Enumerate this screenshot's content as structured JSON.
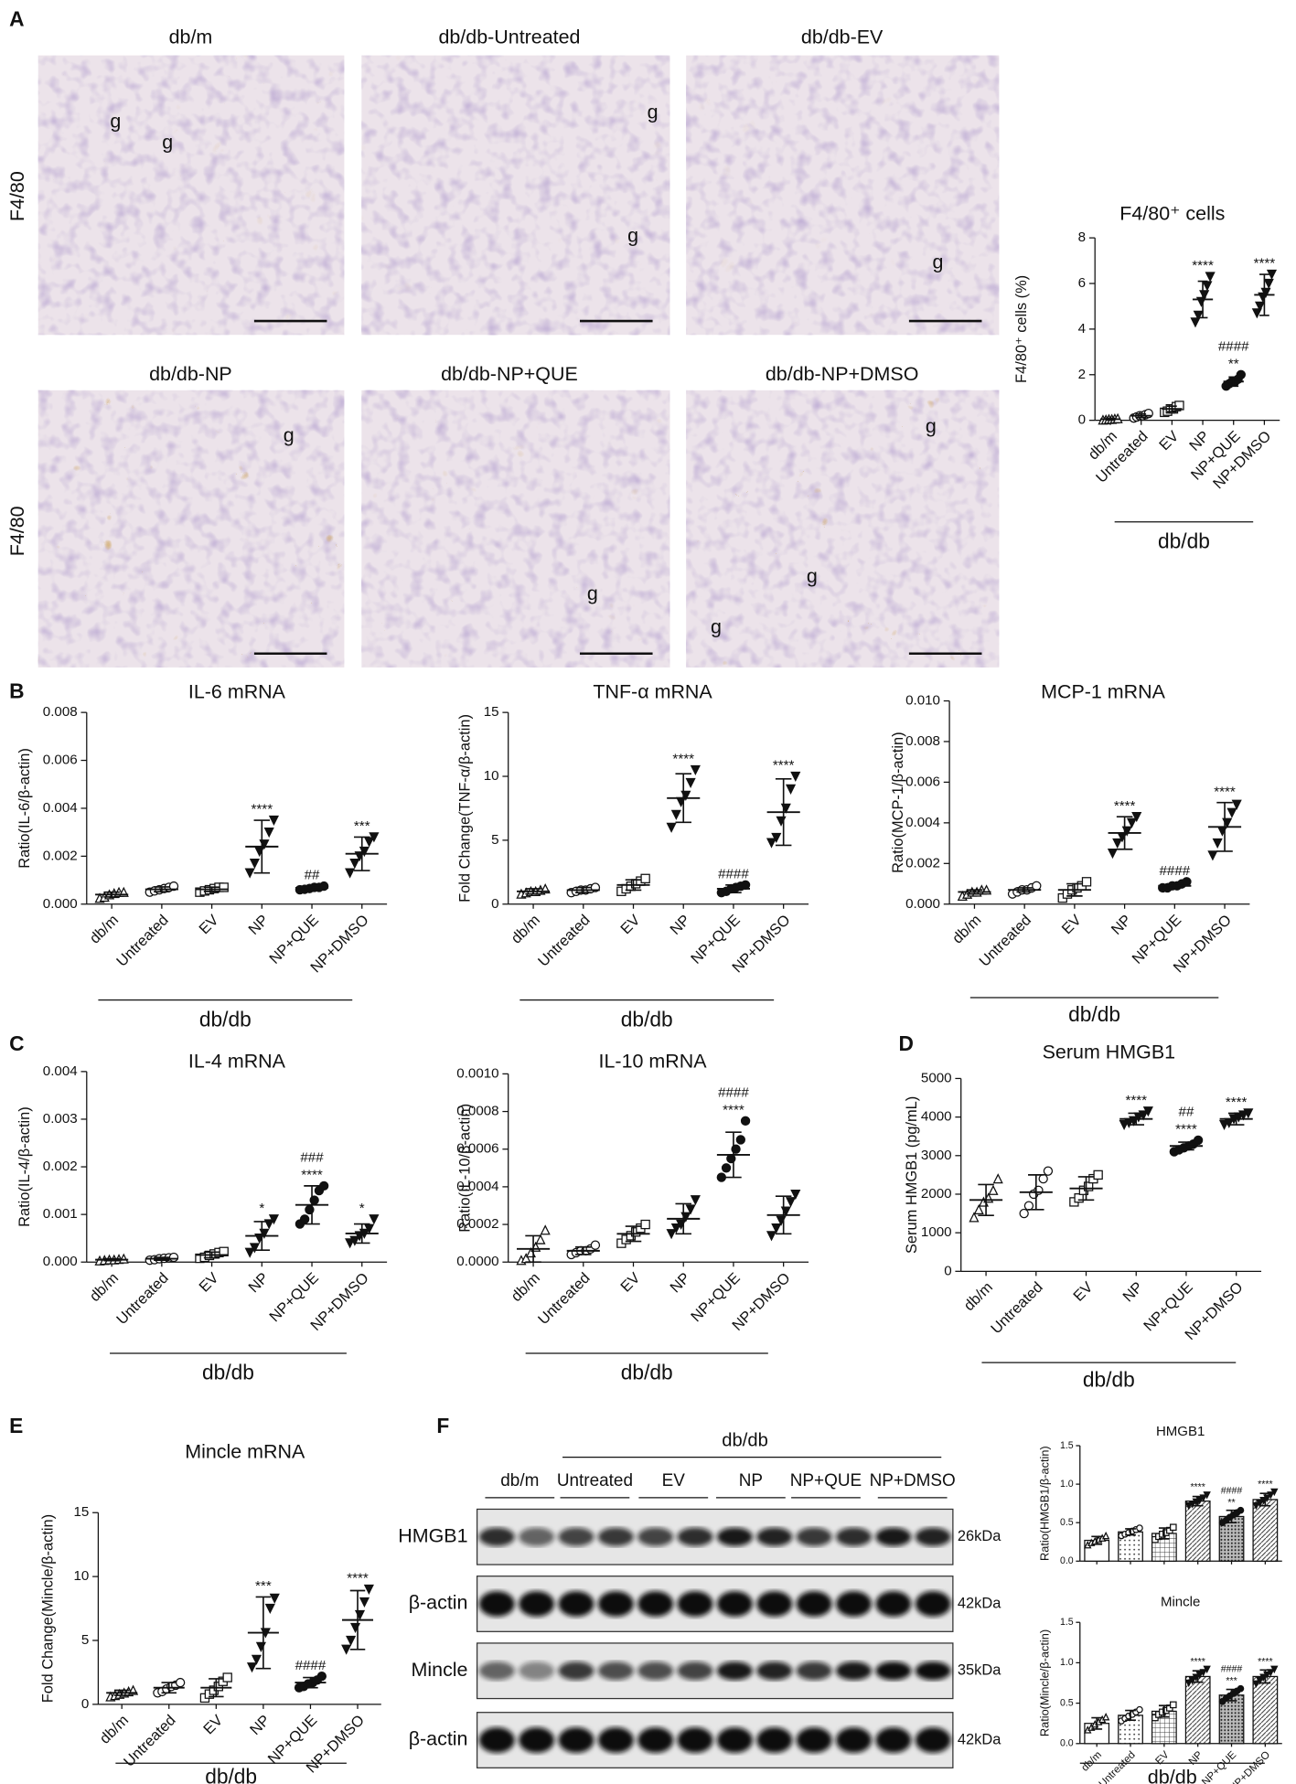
{
  "panels": [
    "A",
    "B",
    "C",
    "D",
    "E",
    "F"
  ],
  "micrographs": {
    "row_labels": [
      "F4/80",
      "F4/80"
    ],
    "images": [
      {
        "title": "db/m",
        "labels": [
          "g",
          "g"
        ]
      },
      {
        "title": "db/db-Untreated",
        "labels": [
          "g",
          "g"
        ]
      },
      {
        "title": "db/db-EV",
        "labels": [
          "g"
        ]
      },
      {
        "title": "db/db-NP",
        "labels": [
          "g"
        ]
      },
      {
        "title": "db/db-NP+QUE",
        "labels": [
          "g"
        ]
      },
      {
        "title": "db/db-NP+DMSO",
        "labels": [
          "g",
          "g",
          "g"
        ]
      }
    ]
  },
  "blot": {
    "group_label": "db/db",
    "lanes": [
      "db/m",
      "Untreated",
      "EV",
      "NP",
      "NP+QUE",
      "NP+DMSO"
    ],
    "rows": [
      {
        "name": "HMGB1",
        "size": "26kDa"
      },
      {
        "name": "β-actin",
        "size": "42kDa"
      },
      {
        "name": "Mincle",
        "size": "35kDa"
      },
      {
        "name": "β-actin",
        "size": "42kDa"
      }
    ]
  },
  "chart_data": [
    {
      "type": "dot-plot",
      "title": "F4/80⁺ cells",
      "ylabel": "F4/80⁺ cells (%)",
      "categories": [
        "db/m",
        "Untreated",
        "EV",
        "NP",
        "NP+QUE",
        "NP+DMSO"
      ],
      "values": [
        0.05,
        0.2,
        0.5,
        5.3,
        1.7,
        5.5
      ],
      "errors": [
        0.04,
        0.08,
        0.12,
        0.8,
        0.2,
        0.9
      ],
      "points": [
        [
          0.02,
          0.03,
          0.05,
          0.05,
          0.07,
          0.08
        ],
        [
          0.1,
          0.15,
          0.2,
          0.2,
          0.25,
          0.3
        ],
        [
          0.35,
          0.4,
          0.5,
          0.5,
          0.6,
          0.65
        ],
        [
          4.3,
          4.6,
          5.2,
          5.5,
          5.9,
          6.3
        ],
        [
          1.5,
          1.6,
          1.7,
          1.7,
          1.8,
          2.0
        ],
        [
          4.7,
          5.0,
          5.4,
          5.6,
          6.0,
          6.4
        ]
      ],
      "annotations": [
        [],
        [],
        [],
        [
          "****"
        ],
        [
          "####",
          "**"
        ],
        [
          "****"
        ]
      ],
      "ylim": [
        0,
        8
      ],
      "yticks": [
        0,
        2,
        4,
        6,
        8
      ],
      "group_label": "db/db",
      "markers": [
        "triangle-open",
        "circle-open",
        "square-open",
        "triangle-down",
        "circle",
        "triangle-down"
      ]
    },
    {
      "type": "dot-plot",
      "title": "IL-6 mRNA",
      "ylabel": "Ratio(IL-6/β-actin)",
      "categories": [
        "db/m",
        "Untreated",
        "EV",
        "NP",
        "NP+QUE",
        "NP+DMSO"
      ],
      "values": [
        0.0004,
        0.00062,
        0.00062,
        0.0024,
        0.00068,
        0.0021
      ],
      "errors": [
        0.0001,
        0.0001,
        9e-05,
        0.0011,
        8e-05,
        0.0007
      ],
      "points": [
        [
          0.00025,
          0.0003,
          0.0004,
          0.00045,
          0.0005,
          0.0005
        ],
        [
          0.0005,
          0.00055,
          0.0006,
          0.00065,
          0.0007,
          0.00075
        ],
        [
          0.0005,
          0.00055,
          0.0006,
          0.00065,
          0.0007,
          0.0007
        ],
        [
          0.0013,
          0.0017,
          0.0022,
          0.0025,
          0.003,
          0.0035
        ],
        [
          0.0006,
          0.00062,
          0.00065,
          0.0007,
          0.0007,
          0.00075
        ],
        [
          0.0013,
          0.0017,
          0.002,
          0.0022,
          0.0026,
          0.0028
        ]
      ],
      "annotations": [
        [],
        [],
        [],
        [
          "****"
        ],
        [
          "##"
        ],
        [
          "***"
        ]
      ],
      "ylim": [
        0,
        0.008
      ],
      "yticks": [
        {
          "value": 0,
          "label": "0.000"
        },
        0.002,
        0.004,
        0.006,
        0.008
      ],
      "group_label": "db/db",
      "markers": [
        "triangle-open",
        "circle-open",
        "square-open",
        "triangle-down",
        "circle",
        "triangle-down"
      ]
    },
    {
      "type": "dot-plot",
      "title": "TNF-α mRNA",
      "ylabel": "Fold Change(TNF-α/β-actin)",
      "categories": [
        "db/m",
        "Untreated",
        "EV",
        "NP",
        "NP+QUE",
        "NP+DMSO"
      ],
      "values": [
        1.0,
        1.1,
        1.5,
        8.3,
        1.2,
        7.2
      ],
      "errors": [
        0.2,
        0.2,
        0.4,
        1.9,
        0.3,
        2.6
      ],
      "points": [
        [
          0.8,
          0.9,
          1.0,
          1.0,
          1.1,
          1.2
        ],
        [
          0.9,
          1.0,
          1.1,
          1.1,
          1.2,
          1.3
        ],
        [
          1.0,
          1.2,
          1.4,
          1.6,
          1.8,
          2.0
        ],
        [
          6.0,
          7.0,
          8.0,
          8.5,
          9.5,
          10.5
        ],
        [
          0.9,
          1.0,
          1.2,
          1.3,
          1.4,
          1.5
        ],
        [
          4.8,
          5.2,
          6.5,
          7.5,
          9,
          10
        ]
      ],
      "annotations": [
        [],
        [],
        [],
        [
          "****"
        ],
        [
          "####"
        ],
        [
          "****"
        ]
      ],
      "ylim": [
        0,
        15
      ],
      "yticks": [
        0,
        5,
        10,
        15
      ],
      "group_label": "db/db",
      "markers": [
        "triangle-open",
        "circle-open",
        "square-open",
        "triangle-down",
        "circle",
        "triangle-down"
      ]
    },
    {
      "type": "dot-plot",
      "title": "MCP-1 mRNA",
      "ylabel": "Ratio(MCP-1/β-actin)",
      "categories": [
        "db/m",
        "Untreated",
        "EV",
        "NP",
        "NP+QUE",
        "NP+DMSO"
      ],
      "values": [
        0.0006,
        0.0007,
        0.0007,
        0.0035,
        0.0009,
        0.0038
      ],
      "errors": [
        0.0001,
        0.0001,
        0.0003,
        0.0008,
        0.0001,
        0.0012
      ],
      "points": [
        [
          0.0004,
          0.0005,
          0.0006,
          0.0006,
          0.0007,
          0.0007
        ],
        [
          0.0005,
          0.0006,
          0.0007,
          0.0007,
          0.0008,
          0.0009
        ],
        [
          0.0003,
          0.0005,
          0.0007,
          0.0008,
          0.0009,
          0.0011
        ],
        [
          0.0025,
          0.003,
          0.0033,
          0.0036,
          0.004,
          0.0043
        ],
        [
          0.0008,
          0.0008,
          0.0009,
          0.0009,
          0.001,
          0.0011
        ],
        [
          0.0024,
          0.003,
          0.0036,
          0.004,
          0.0045,
          0.0049
        ]
      ],
      "annotations": [
        [],
        [],
        [],
        [
          "****"
        ],
        [
          "####"
        ],
        [
          "****"
        ]
      ],
      "ylim": [
        0,
        0.01
      ],
      "yticks": [
        {
          "value": 0,
          "label": "0.000"
        },
        0.002,
        0.004,
        0.006,
        0.008,
        {
          "value": 0.01,
          "label": "0.010"
        }
      ],
      "group_label": "db/db",
      "markers": [
        "triangle-open",
        "circle-open",
        "square-open",
        "triangle-down",
        "circle",
        "triangle-down"
      ]
    },
    {
      "type": "dot-plot",
      "title": "IL-4 mRNA",
      "ylabel": "Ratio(IL-4/β-actin)",
      "categories": [
        "db/m",
        "Untreated",
        "EV",
        "NP",
        "NP+QUE",
        "NP+DMSO"
      ],
      "values": [
        5e-05,
        7e-05,
        0.00015,
        0.00055,
        0.0012,
        0.0006
      ],
      "errors": [
        2e-05,
        3e-05,
        6e-05,
        0.0003,
        0.0004,
        0.0002
      ],
      "points": [
        [
          3e-05,
          4e-05,
          5e-05,
          5e-05,
          6e-05,
          7e-05
        ],
        [
          4e-05,
          5e-05,
          7e-05,
          8e-05,
          9e-05,
          0.0001
        ],
        [
          8e-05,
          0.0001,
          0.00014,
          0.00017,
          0.0002,
          0.00022
        ],
        [
          0.0002,
          0.0003,
          0.0005,
          0.0006,
          0.0008,
          0.0009
        ],
        [
          0.0008,
          0.0009,
          0.0011,
          0.0013,
          0.0015,
          0.0016
        ],
        [
          0.0004,
          0.00045,
          0.00055,
          0.0006,
          0.0007,
          0.0009
        ]
      ],
      "annotations": [
        [],
        [],
        [],
        [
          "*"
        ],
        [
          "###",
          "****"
        ],
        [
          "*"
        ]
      ],
      "ylim": [
        0,
        0.004
      ],
      "yticks": [
        {
          "value": 0,
          "label": "0.000"
        },
        0.001,
        0.002,
        0.003,
        0.004
      ],
      "group_label": "db/db",
      "markers": [
        "triangle-open",
        "circle-open",
        "square-open",
        "triangle-down",
        "circle",
        "triangle-down"
      ]
    },
    {
      "type": "dot-plot",
      "title": "IL-10 mRNA",
      "ylabel": "Ratio(IL-10/β-actin)",
      "categories": [
        "db/m",
        "Untreated",
        "EV",
        "NP",
        "NP+QUE",
        "NP+DMSO"
      ],
      "values": [
        7e-05,
        6e-05,
        0.00015,
        0.00023,
        0.00057,
        0.00025
      ],
      "errors": [
        7e-05,
        2e-05,
        4e-05,
        8e-05,
        0.00012,
        0.0001
      ],
      "points": [
        [
          1e-05,
          2e-05,
          5e-05,
          8e-05,
          0.00012,
          0.00017
        ],
        [
          4e-05,
          5e-05,
          6e-05,
          6e-05,
          7e-05,
          9e-05
        ],
        [
          0.0001,
          0.00012,
          0.00014,
          0.00016,
          0.00018,
          0.0002
        ],
        [
          0.00015,
          0.00018,
          0.0002,
          0.00024,
          0.00028,
          0.00033
        ],
        [
          0.00045,
          0.0005,
          0.00055,
          0.0006,
          0.00065,
          0.00075
        ],
        [
          0.00014,
          0.00018,
          0.00022,
          0.00027,
          0.00032,
          0.00036
        ]
      ],
      "annotations": [
        [],
        [],
        [],
        [],
        [
          "####",
          "****"
        ],
        []
      ],
      "ylim": [
        0,
        0.001
      ],
      "yticks": [
        {
          "value": 0,
          "label": "0.0000"
        },
        0.0002,
        0.0004,
        0.0006,
        0.0008,
        {
          "value": 0.001,
          "label": "0.0010"
        }
      ],
      "group_label": "db/db",
      "markers": [
        "triangle-open",
        "circle-open",
        "square-open",
        "triangle-down",
        "circle",
        "triangle-down"
      ]
    },
    {
      "type": "dot-plot",
      "title": "Serum HMGB1",
      "ylabel": "Serum HMGB1 (pg/mL)",
      "categories": [
        "db/m",
        "Untreated",
        "EV",
        "NP",
        "NP+QUE",
        "NP+DMSO"
      ],
      "values": [
        1850,
        2050,
        2150,
        3950,
        3250,
        3950
      ],
      "errors": [
        400,
        450,
        300,
        150,
        100,
        150
      ],
      "points": [
        [
          1400,
          1600,
          1800,
          1900,
          2100,
          2400
        ],
        [
          1500,
          1700,
          2000,
          2100,
          2400,
          2600
        ],
        [
          1800,
          1900,
          2100,
          2200,
          2400,
          2500
        ],
        [
          3800,
          3850,
          3900,
          4000,
          4050,
          4150
        ],
        [
          3100,
          3150,
          3200,
          3250,
          3300,
          3400
        ],
        [
          3800,
          3850,
          3950,
          4000,
          4050,
          4100
        ]
      ],
      "annotations": [
        [],
        [],
        [],
        [
          "****"
        ],
        [
          "##",
          "****"
        ],
        [
          "****"
        ]
      ],
      "ylim": [
        0,
        5000
      ],
      "yticks": [
        0,
        1000,
        2000,
        3000,
        4000,
        5000
      ],
      "group_label": "db/db",
      "markers": [
        "triangle-open",
        "circle-open",
        "square-open",
        "triangle-down",
        "circle",
        "triangle-down"
      ]
    },
    {
      "type": "dot-plot",
      "title": "Mincle mRNA",
      "ylabel": "Fold Change(Mincle/β-actin)",
      "categories": [
        "db/m",
        "Untreated",
        "EV",
        "NP",
        "NP+QUE",
        "NP+DMSO"
      ],
      "values": [
        0.9,
        1.3,
        1.3,
        5.6,
        1.7,
        6.6
      ],
      "errors": [
        0.2,
        0.4,
        0.7,
        2.8,
        0.4,
        2.3
      ],
      "points": [
        [
          0.6,
          0.7,
          0.8,
          0.9,
          1.0,
          1.1
        ],
        [
          0.9,
          1.0,
          1.2,
          1.4,
          1.5,
          1.7
        ],
        [
          0.5,
          0.8,
          1.1,
          1.4,
          1.8,
          2.1
        ],
        [
          2.9,
          3.5,
          4.5,
          5.6,
          7.5,
          8.3
        ],
        [
          1.3,
          1.4,
          1.6,
          1.7,
          1.9,
          2.2
        ],
        [
          4.3,
          5.0,
          6.0,
          7.0,
          8.0,
          9.0
        ]
      ],
      "annotations": [
        [],
        [],
        [],
        [
          "***"
        ],
        [
          "####"
        ],
        [
          "****"
        ]
      ],
      "ylim": [
        0,
        15
      ],
      "yticks": [
        0,
        5,
        10,
        15
      ],
      "group_label": "db/db",
      "markers": [
        "triangle-open",
        "circle-open",
        "square-open",
        "triangle-down",
        "circle",
        "triangle-down"
      ]
    },
    {
      "type": "bar",
      "title": "HMGB1",
      "ylabel": "Ratio(HMGB1/β-actin)",
      "categories": [
        null,
        null,
        null,
        null,
        null,
        null
      ],
      "values": [
        0.27,
        0.38,
        0.36,
        0.78,
        0.58,
        0.8
      ],
      "errors": [
        0.05,
        0.04,
        0.07,
        0.06,
        0.08,
        0.08
      ],
      "points": [
        [
          0.21,
          0.24,
          0.26,
          0.28,
          0.3,
          0.33
        ],
        [
          0.33,
          0.35,
          0.37,
          0.39,
          0.41,
          0.43
        ],
        [
          0.28,
          0.32,
          0.35,
          0.37,
          0.4,
          0.44
        ],
        [
          0.72,
          0.74,
          0.77,
          0.79,
          0.82,
          0.86
        ],
        [
          0.5,
          0.53,
          0.57,
          0.6,
          0.63,
          0.66
        ],
        [
          0.72,
          0.75,
          0.79,
          0.82,
          0.86,
          0.9
        ]
      ],
      "annotations": [
        [],
        [],
        [],
        [
          "****"
        ],
        [
          "####",
          "**"
        ],
        [
          "****"
        ]
      ],
      "ylim": [
        0,
        1.5
      ],
      "yticks": [
        {
          "value": 0,
          "label": "0.0"
        },
        0.5,
        {
          "value": 1,
          "label": "1.0"
        },
        1.5
      ],
      "markers": [
        "triangle-open",
        "circle-open",
        "square-open",
        "triangle-down",
        "circle",
        "triangle-down"
      ],
      "hatches": [
        "none",
        "dots",
        "grid",
        "diagonal",
        "dense",
        "diagonal"
      ]
    },
    {
      "type": "bar",
      "title": "Mincle",
      "ylabel": "Ratio(Mincle/β-actin)",
      "categories": [
        "db/m",
        "Untreated",
        "EV",
        "NP",
        "NP+QUE",
        "NP+DMSO"
      ],
      "values": [
        0.25,
        0.35,
        0.4,
        0.83,
        0.6,
        0.83
      ],
      "errors": [
        0.07,
        0.06,
        0.07,
        0.07,
        0.07,
        0.08
      ],
      "points": [
        [
          0.17,
          0.2,
          0.24,
          0.27,
          0.3,
          0.33
        ],
        [
          0.28,
          0.31,
          0.34,
          0.36,
          0.39,
          0.42
        ],
        [
          0.32,
          0.36,
          0.39,
          0.41,
          0.44,
          0.48
        ],
        [
          0.75,
          0.78,
          0.82,
          0.85,
          0.88,
          0.92
        ],
        [
          0.52,
          0.56,
          0.59,
          0.62,
          0.65,
          0.68
        ],
        [
          0.74,
          0.78,
          0.82,
          0.85,
          0.88,
          0.92
        ]
      ],
      "annotations": [
        [],
        [],
        [],
        [
          "****"
        ],
        [
          "####",
          "***"
        ],
        [
          "****"
        ]
      ],
      "ylim": [
        0,
        1.5
      ],
      "yticks": [
        {
          "value": 0,
          "label": "0.0"
        },
        0.5,
        {
          "value": 1,
          "label": "1.0"
        },
        1.5
      ],
      "group_label": "db/db",
      "markers": [
        "triangle-open",
        "circle-open",
        "square-open",
        "triangle-down",
        "circle",
        "triangle-down"
      ],
      "hatches": [
        "none",
        "dots",
        "grid",
        "diagonal",
        "dense",
        "diagonal"
      ]
    }
  ]
}
